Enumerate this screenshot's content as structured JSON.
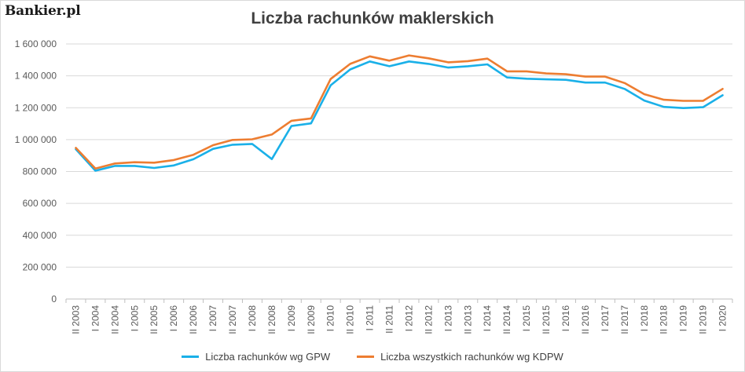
{
  "logo": "Bankier.pl",
  "chart_data": {
    "type": "line",
    "title": "Liczba rachunków maklerskich",
    "xlabel": "",
    "ylabel": "",
    "ylim": [
      0,
      1600000
    ],
    "yticks": [
      0,
      200000,
      400000,
      600000,
      800000,
      1000000,
      1200000,
      1400000,
      1600000
    ],
    "ytick_labels": [
      "0",
      "200 000",
      "400 000",
      "600 000",
      "800 000",
      "1 000 000",
      "1 200 000",
      "1 400 000",
      "1 600 000"
    ],
    "grid": true,
    "legend_position": "bottom",
    "categories": [
      "II 2003",
      "I 2004",
      "II 2004",
      "I 2005",
      "II 2005",
      "I 2006",
      "II 2006",
      "I 2007",
      "II 2007",
      "I 2008",
      "II 2008",
      "I 2009",
      "II 2009",
      "I 2010",
      "II 2010",
      "I 2011",
      "II 2011",
      "I 2012",
      "II 2012",
      "I 2013",
      "II 2013",
      "I 2014",
      "II 2014",
      "I 2015",
      "II 2015",
      "I 2016",
      "II 2016",
      "I 2017",
      "II 2017",
      "I 2018",
      "II 2018",
      "I 2019",
      "II 2019",
      "I 2020"
    ],
    "series": [
      {
        "name": "Liczba rachunków wg GPW",
        "color": "#1ab0e8",
        "values": [
          940000,
          805000,
          835000,
          835000,
          822000,
          838000,
          877000,
          942000,
          968000,
          973000,
          878000,
          1085000,
          1102000,
          1340000,
          1440000,
          1490000,
          1460000,
          1490000,
          1475000,
          1452000,
          1460000,
          1472000,
          1390000,
          1382000,
          1378000,
          1375000,
          1358000,
          1358000,
          1318000,
          1245000,
          1205000,
          1198000,
          1203000,
          1278000
        ]
      },
      {
        "name": "Liczba wszystkich rachunków wg KDPW",
        "color": "#ed7d31",
        "values": [
          948000,
          818000,
          850000,
          858000,
          855000,
          872000,
          905000,
          965000,
          998000,
          1002000,
          1032000,
          1118000,
          1133000,
          1380000,
          1475000,
          1522000,
          1495000,
          1528000,
          1510000,
          1485000,
          1492000,
          1508000,
          1428000,
          1428000,
          1415000,
          1410000,
          1395000,
          1395000,
          1355000,
          1285000,
          1250000,
          1243000,
          1243000,
          1318000
        ]
      }
    ]
  }
}
